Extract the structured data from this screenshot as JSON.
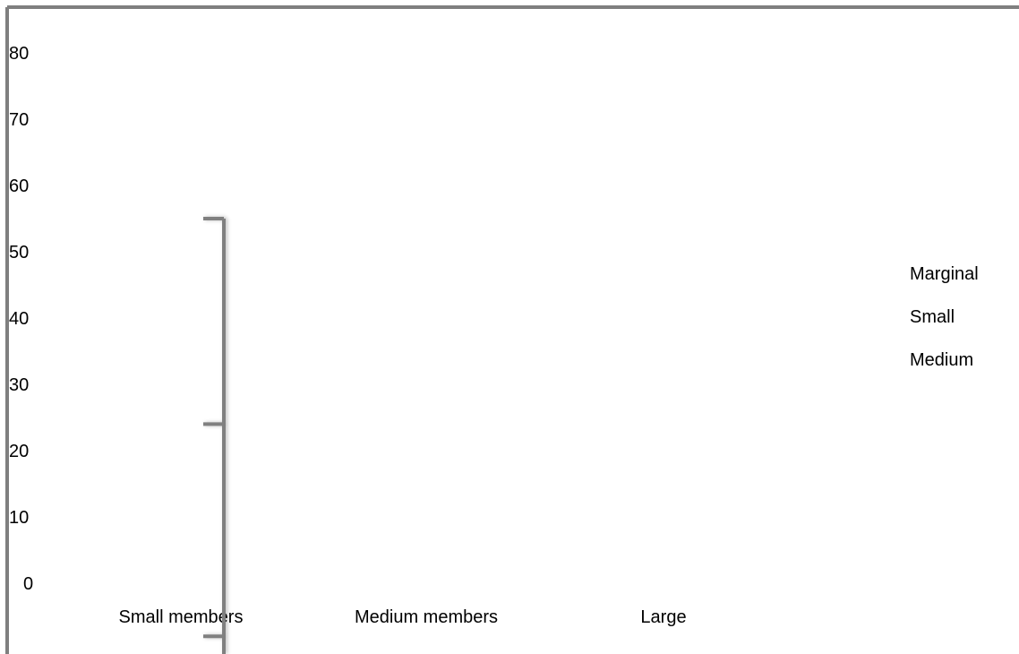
{
  "chart_data": {
    "type": "bar",
    "title": "",
    "xlabel": "",
    "ylabel": "",
    "ylim": [
      -10,
      80
    ],
    "y_ticks": [
      "80",
      "70",
      "60",
      "50",
      "40",
      "30",
      "20",
      "10",
      "0"
    ],
    "categories": [
      "Small members",
      "Medium members",
      "Large"
    ],
    "legend_position": "right",
    "legend": [
      "Marginal",
      "Small",
      "Medium"
    ],
    "grid": false,
    "colors": {
      "frame": "#7f7f7f",
      "bracket": "#808080",
      "text": "#000000"
    },
    "range_markers": [
      {
        "category": "Small members",
        "values": [
          55,
          24,
          -8
        ]
      }
    ]
  }
}
